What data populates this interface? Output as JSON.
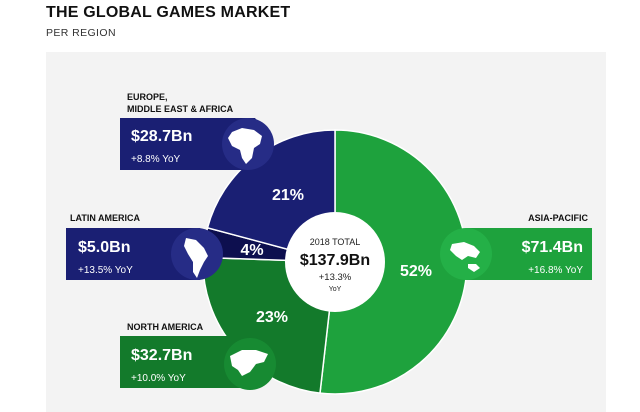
{
  "title": "THE GLOBAL GAMES MARKET",
  "subtitle": "PER REGION",
  "center": {
    "label": "2018 TOTAL",
    "value": "$137.9Bn",
    "yoy": "+13.3%",
    "yoy_unit": "YoY"
  },
  "regions": [
    {
      "name_lines": [
        "EUROPE,",
        "MIDDLE EAST & AFRICA"
      ],
      "value": "$28.7Bn",
      "yoy": "+8.8% YoY",
      "pct_label": "21%",
      "color": "#1a1f73",
      "icon": "emea-map-icon"
    },
    {
      "name_lines": [
        "LATIN AMERICA"
      ],
      "value": "$5.0Bn",
      "yoy": "+13.5% YoY",
      "pct_label": "4%",
      "color": "#1a1f73",
      "icon": "latin-america-map-icon"
    },
    {
      "name_lines": [
        "NORTH AMERICA"
      ],
      "value": "$32.7Bn",
      "yoy": "+10.0% YoY",
      "pct_label": "23%",
      "color": "#137a2b",
      "icon": "north-america-map-icon"
    },
    {
      "name_lines": [
        "ASIA-PACIFIC"
      ],
      "value": "$71.4Bn",
      "yoy": "+16.8% YoY",
      "pct_label": "52%",
      "color": "#1ea23d",
      "icon": "asia-pacific-map-icon"
    }
  ],
  "chart_data": {
    "type": "pie",
    "title": "THE GLOBAL GAMES MARKET",
    "subtitle": "PER REGION",
    "categories": [
      "Asia-Pacific",
      "North America",
      "Latin America",
      "Europe, Middle East & Africa"
    ],
    "values": [
      71.4,
      32.7,
      5.0,
      28.7
    ],
    "unit": "$Bn",
    "percentages": [
      52,
      23,
      4,
      21
    ],
    "yoy_growth": [
      16.8,
      10.0,
      13.5,
      8.8
    ],
    "total": 137.9,
    "total_yoy": 13.3,
    "colors": [
      "#1ea23d",
      "#137a2b",
      "#0d0f4f",
      "#1a1f73"
    ]
  }
}
